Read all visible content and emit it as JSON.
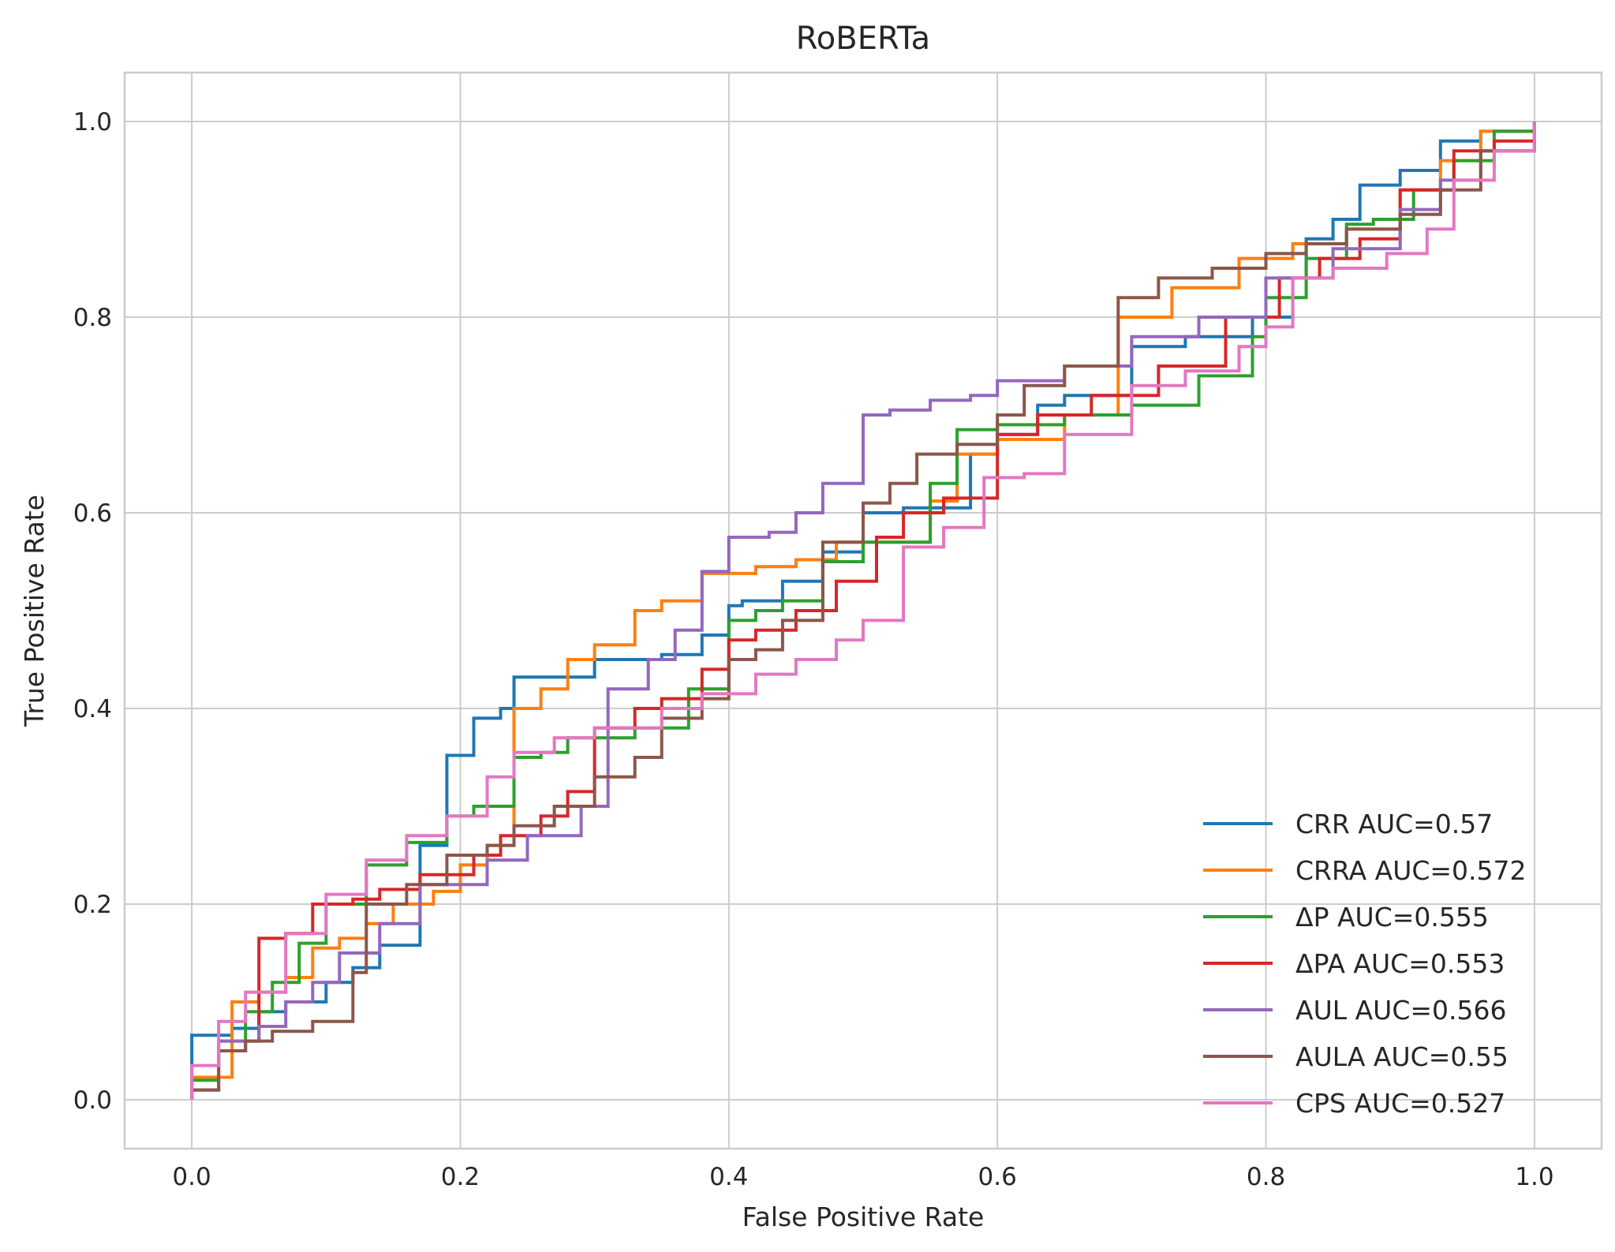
{
  "chart_data": {
    "type": "line",
    "title": "RoBERTa",
    "xlabel": "False Positive Rate",
    "ylabel": "True Positive Rate",
    "xlim": [
      -0.05,
      1.05
    ],
    "ylim": [
      -0.05,
      1.05
    ],
    "xticks": [
      "0.0",
      "0.2",
      "0.4",
      "0.6",
      "0.8",
      "1.0"
    ],
    "yticks": [
      "0.0",
      "0.2",
      "0.4",
      "0.6",
      "0.8",
      "1.0"
    ],
    "grid": true,
    "legend_position": "lower-right",
    "series": [
      {
        "name": "CRR AUC=0.57",
        "color": "#1f77b4",
        "x": [
          0,
          0,
          0.03,
          0.05,
          0.07,
          0.1,
          0.12,
          0.14,
          0.17,
          0.19,
          0.21,
          0.23,
          0.24,
          0.3,
          0.35,
          0.38,
          0.4,
          0.41,
          0.44,
          0.47,
          0.5,
          0.53,
          0.58,
          0.6,
          0.63,
          0.65,
          0.7,
          0.74,
          0.79,
          0.82,
          0.83,
          0.85,
          0.87,
          0.9,
          0.93,
          0.96,
          1.0
        ],
        "y": [
          0,
          0.066,
          0.073,
          0.09,
          0.1,
          0.12,
          0.135,
          0.158,
          0.26,
          0.352,
          0.39,
          0.4,
          0.432,
          0.45,
          0.455,
          0.475,
          0.505,
          0.51,
          0.53,
          0.56,
          0.6,
          0.605,
          0.66,
          0.68,
          0.71,
          0.72,
          0.77,
          0.78,
          0.8,
          0.84,
          0.88,
          0.9,
          0.935,
          0.95,
          0.98,
          0.99,
          1.0
        ]
      },
      {
        "name": "CRRA AUC=0.572",
        "color": "#ff7f0e",
        "x": [
          0,
          0,
          0.03,
          0.05,
          0.07,
          0.09,
          0.11,
          0.13,
          0.15,
          0.18,
          0.2,
          0.22,
          0.24,
          0.26,
          0.28,
          0.3,
          0.33,
          0.35,
          0.38,
          0.42,
          0.45,
          0.48,
          0.55,
          0.57,
          0.6,
          0.65,
          0.69,
          0.73,
          0.78,
          0.82,
          0.86,
          0.9,
          0.93,
          0.96,
          1.0
        ],
        "y": [
          0,
          0.023,
          0.1,
          0.11,
          0.125,
          0.155,
          0.165,
          0.18,
          0.2,
          0.213,
          0.24,
          0.26,
          0.4,
          0.42,
          0.45,
          0.465,
          0.5,
          0.51,
          0.538,
          0.545,
          0.552,
          0.57,
          0.612,
          0.66,
          0.675,
          0.7,
          0.8,
          0.83,
          0.86,
          0.875,
          0.89,
          0.93,
          0.96,
          0.99,
          1.0
        ]
      },
      {
        "name": "ΔP AUC=0.555",
        "color": "#2ca02c",
        "x": [
          0,
          0,
          0.02,
          0.04,
          0.06,
          0.08,
          0.1,
          0.13,
          0.16,
          0.19,
          0.21,
          0.24,
          0.26,
          0.28,
          0.33,
          0.37,
          0.4,
          0.42,
          0.44,
          0.47,
          0.5,
          0.55,
          0.57,
          0.6,
          0.65,
          0.7,
          0.75,
          0.79,
          0.8,
          0.83,
          0.86,
          0.88,
          0.91,
          0.94,
          0.97,
          1.0
        ],
        "y": [
          0,
          0.02,
          0.06,
          0.09,
          0.12,
          0.16,
          0.2,
          0.24,
          0.263,
          0.29,
          0.3,
          0.35,
          0.355,
          0.37,
          0.38,
          0.42,
          0.49,
          0.5,
          0.51,
          0.55,
          0.57,
          0.63,
          0.685,
          0.69,
          0.7,
          0.71,
          0.74,
          0.78,
          0.82,
          0.86,
          0.895,
          0.9,
          0.93,
          0.96,
          0.99,
          1.0
        ]
      },
      {
        "name": "ΔPA AUC=0.553",
        "color": "#d62728",
        "x": [
          0,
          0,
          0.02,
          0.04,
          0.05,
          0.07,
          0.09,
          0.12,
          0.14,
          0.17,
          0.21,
          0.23,
          0.26,
          0.28,
          0.3,
          0.33,
          0.35,
          0.38,
          0.4,
          0.42,
          0.45,
          0.48,
          0.51,
          0.53,
          0.56,
          0.6,
          0.63,
          0.67,
          0.72,
          0.77,
          0.81,
          0.84,
          0.87,
          0.9,
          0.94,
          0.97,
          1.0
        ],
        "y": [
          0,
          0.01,
          0.05,
          0.06,
          0.165,
          0.17,
          0.2,
          0.205,
          0.215,
          0.23,
          0.25,
          0.27,
          0.29,
          0.315,
          0.38,
          0.4,
          0.41,
          0.44,
          0.47,
          0.48,
          0.5,
          0.53,
          0.575,
          0.6,
          0.615,
          0.68,
          0.7,
          0.72,
          0.75,
          0.8,
          0.84,
          0.86,
          0.88,
          0.93,
          0.97,
          0.98,
          1.0
        ]
      },
      {
        "name": "AUL AUC=0.566",
        "color": "#9467bd",
        "x": [
          0,
          0,
          0.02,
          0.05,
          0.07,
          0.09,
          0.11,
          0.14,
          0.17,
          0.22,
          0.25,
          0.29,
          0.31,
          0.34,
          0.36,
          0.38,
          0.4,
          0.43,
          0.45,
          0.47,
          0.5,
          0.52,
          0.55,
          0.58,
          0.6,
          0.65,
          0.7,
          0.75,
          0.8,
          0.85,
          0.9,
          0.93,
          0.96,
          1.0
        ],
        "y": [
          0,
          0.01,
          0.06,
          0.075,
          0.1,
          0.12,
          0.15,
          0.18,
          0.22,
          0.245,
          0.27,
          0.3,
          0.42,
          0.45,
          0.48,
          0.54,
          0.575,
          0.58,
          0.6,
          0.63,
          0.7,
          0.705,
          0.715,
          0.72,
          0.735,
          0.75,
          0.78,
          0.8,
          0.84,
          0.87,
          0.91,
          0.94,
          0.97,
          1.0
        ]
      },
      {
        "name": "AULA AUC=0.55",
        "color": "#8c564b",
        "x": [
          0,
          0,
          0.02,
          0.04,
          0.06,
          0.09,
          0.12,
          0.13,
          0.16,
          0.19,
          0.22,
          0.24,
          0.27,
          0.3,
          0.33,
          0.35,
          0.38,
          0.4,
          0.42,
          0.44,
          0.47,
          0.5,
          0.52,
          0.54,
          0.57,
          0.6,
          0.62,
          0.65,
          0.69,
          0.72,
          0.76,
          0.8,
          0.83,
          0.86,
          0.9,
          0.93,
          0.96,
          1.0
        ],
        "y": [
          0,
          0.01,
          0.05,
          0.06,
          0.07,
          0.08,
          0.13,
          0.2,
          0.22,
          0.25,
          0.26,
          0.28,
          0.3,
          0.33,
          0.35,
          0.39,
          0.41,
          0.45,
          0.46,
          0.49,
          0.57,
          0.61,
          0.63,
          0.66,
          0.67,
          0.7,
          0.73,
          0.75,
          0.82,
          0.84,
          0.85,
          0.865,
          0.875,
          0.89,
          0.905,
          0.93,
          0.97,
          1.0
        ]
      },
      {
        "name": "CPS AUC=0.527",
        "color": "#e377c2",
        "x": [
          0,
          0,
          0.02,
          0.04,
          0.07,
          0.1,
          0.13,
          0.16,
          0.19,
          0.22,
          0.24,
          0.27,
          0.3,
          0.35,
          0.38,
          0.42,
          0.45,
          0.48,
          0.5,
          0.53,
          0.56,
          0.59,
          0.62,
          0.65,
          0.7,
          0.74,
          0.78,
          0.8,
          0.82,
          0.85,
          0.89,
          0.92,
          0.94,
          0.97,
          1.0
        ],
        "y": [
          0,
          0.035,
          0.08,
          0.11,
          0.17,
          0.21,
          0.245,
          0.27,
          0.29,
          0.33,
          0.355,
          0.37,
          0.38,
          0.4,
          0.415,
          0.435,
          0.45,
          0.47,
          0.49,
          0.565,
          0.585,
          0.636,
          0.64,
          0.68,
          0.73,
          0.745,
          0.77,
          0.79,
          0.84,
          0.85,
          0.865,
          0.89,
          0.94,
          0.97,
          1.0
        ]
      }
    ]
  }
}
